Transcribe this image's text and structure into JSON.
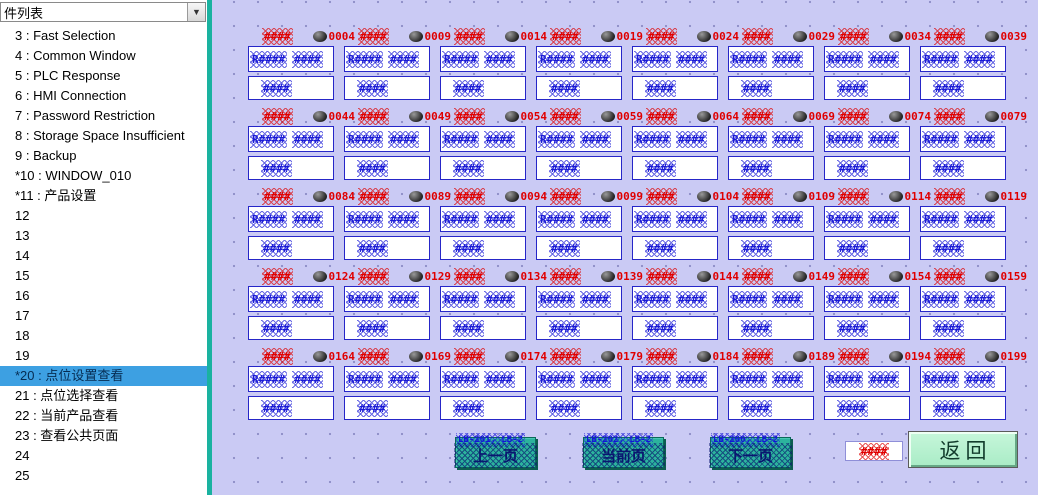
{
  "sidebar": {
    "dropdown_label": "件列表",
    "selected_index": 17,
    "items": [
      "3 : Fast Selection",
      "4 : Common Window",
      "5 : PLC Response",
      "6 : HMI Connection",
      "7 : Password Restriction",
      "8 : Storage Space Insufficient",
      "9 : Backup",
      "*10 : WINDOW_010",
      "*11 : 产品设置",
      "12",
      "13",
      "14",
      "15",
      "16",
      "17",
      "18",
      "19",
      "*20 : 点位设置查看",
      "21 : 点位选择查看",
      "22 : 当前产品查看",
      "23 : 查看公共页面",
      "24",
      "25"
    ]
  },
  "canvas": {
    "cell_ids": [
      "0004",
      "0009",
      "0014",
      "0019",
      "0024",
      "0029",
      "0034",
      "0039",
      "0044",
      "0049",
      "0054",
      "0059",
      "0064",
      "0069",
      "0074",
      "0079",
      "0084",
      "0089",
      "0094",
      "0099",
      "0104",
      "0109",
      "0114",
      "0119",
      "0124",
      "0129",
      "0134",
      "0139",
      "0144",
      "0149",
      "0154",
      "0159",
      "0164",
      "0169",
      "0174",
      "0179",
      "0184",
      "0189",
      "0194",
      "0199"
    ],
    "cell": {
      "top_hash": "####",
      "register_label": "R####",
      "register_value": "####",
      "bottom_value": "####"
    },
    "page_buttons": [
      {
        "address": "LB-201, LB-2",
        "label": "上一页"
      },
      {
        "address": "LB-202, LB-2",
        "label": "当前页"
      },
      {
        "address": "LB-200, LB-2",
        "label": "下一页"
      }
    ],
    "numeric_box": "####",
    "return_button": "返回",
    "colors": {
      "canvas_bg": "#cacaf4",
      "box_border": "#2626c8",
      "blue_text": "#1a1ad6",
      "red_text": "#e00000",
      "page_button_bg": "#2cb39d",
      "return_button_bg": "#b7f2cf",
      "selection_bg": "#3da0e2",
      "splitter": "#1ab2a0"
    }
  }
}
